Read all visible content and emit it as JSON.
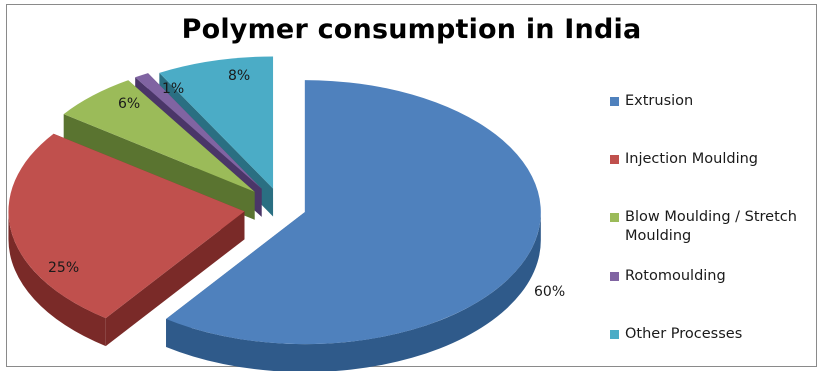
{
  "chart_data": {
    "type": "pie",
    "title": "Polymer consumption in India",
    "legend_position": "right",
    "slices": [
      {
        "label": "Extrusion",
        "value": 60,
        "value_label": "60%",
        "color": "#4f81bd",
        "side_color": "#2f5a8a"
      },
      {
        "label": "Injection Moulding",
        "value": 25,
        "value_label": "25%",
        "color": "#c0504d",
        "side_color": "#7a2a28"
      },
      {
        "label": "Blow Moulding / Stretch Moulding",
        "value": 6,
        "value_label": "6%",
        "color": "#9bbb59",
        "side_color": "#5a7430"
      },
      {
        "label": "Rotomoulding",
        "value": 1,
        "value_label": "1%",
        "color": "#8064a2",
        "side_color": "#4a3668"
      },
      {
        "label": "Other Processes",
        "value": 8,
        "value_label": "8%",
        "color": "#4bacc6",
        "side_color": "#2a6f82"
      }
    ]
  }
}
